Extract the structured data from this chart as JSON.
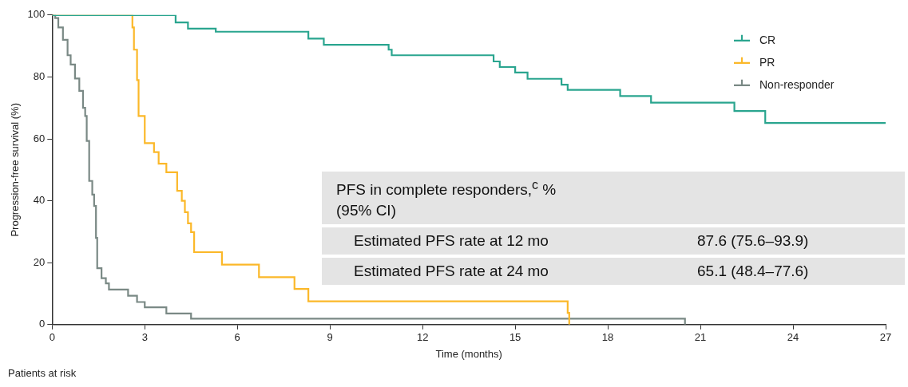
{
  "chart_data": {
    "type": "step",
    "xlabel": "Time (months)",
    "ylabel": "Progression-free survival (%)",
    "xlim": [
      0,
      27
    ],
    "xticks": [
      0,
      3,
      6,
      9,
      12,
      15,
      18,
      21,
      24,
      27
    ],
    "ylim": [
      0,
      100
    ],
    "yticks": [
      0,
      20,
      40,
      60,
      80,
      100
    ],
    "grid": false,
    "legend": "top right",
    "series": [
      {
        "name": "CR",
        "color": "#2aa58f",
        "x": [
          0,
          4.0,
          4.4,
          5.3,
          8.3,
          8.8,
          10.9,
          11.0,
          14.3,
          14.5,
          15.0,
          15.4,
          16.5,
          16.7,
          18.4,
          19.4,
          22.1,
          23.1,
          27
        ],
        "values": [
          100,
          97.6,
          95.6,
          94.6,
          92.4,
          90.4,
          88.8,
          87.0,
          85.0,
          83.2,
          81.4,
          79.4,
          77.5,
          75.8,
          73.8,
          71.7,
          69.0,
          65.1,
          65.1
        ]
      },
      {
        "name": "PR",
        "color": "#fbb829",
        "x": [
          0,
          2.6,
          2.65,
          2.75,
          2.8,
          3.0,
          3.3,
          3.45,
          3.7,
          4.05,
          4.2,
          4.3,
          4.4,
          4.5,
          4.6,
          5.5,
          6.7,
          7.85,
          8.3,
          16.7,
          16.75
        ],
        "values": [
          100,
          96,
          88.8,
          79,
          67.4,
          58.6,
          55.7,
          52,
          49.2,
          43.2,
          40,
          36.3,
          32.7,
          29.9,
          23.4,
          19.4,
          15.3,
          11.5,
          7.5,
          3.8,
          0
        ]
      },
      {
        "name": "Non-responder",
        "color": "#7a8985",
        "x": [
          0,
          0.1,
          0.2,
          0.35,
          0.5,
          0.6,
          0.74,
          0.88,
          1.0,
          1.07,
          1.12,
          1.2,
          1.3,
          1.36,
          1.42,
          1.46,
          1.6,
          1.74,
          1.84,
          2.46,
          2.75,
          3.0,
          3.7,
          4.5,
          20.5
        ],
        "values": [
          100,
          99,
          96,
          92,
          87,
          84,
          79.5,
          75.5,
          70,
          67.4,
          59.3,
          46.4,
          42,
          38.3,
          28,
          18.2,
          15,
          13.3,
          11.3,
          9.3,
          7.3,
          5.6,
          3.6,
          1.9,
          0
        ]
      }
    ],
    "annotations": [
      "PFS in complete responders,$^{c}$ %",
      "(95% CI)",
      "Estimated PFS rate at 12 mo",
      "87.6 (75.6–93.9)",
      "Estimated PFS rate at 24 mo",
      "65.1 (48.4–77.6)",
      "Patients at risk"
    ]
  }
}
